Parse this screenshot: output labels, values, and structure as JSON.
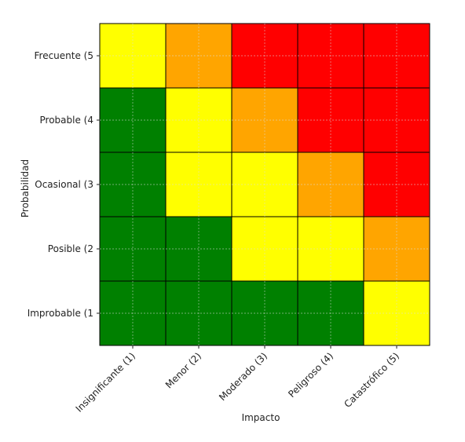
{
  "chart_data": {
    "type": "heatmap",
    "title": "",
    "xlabel": "Impacto",
    "ylabel": "Probabilidad",
    "x_categories": [
      "Insignificante (1)",
      "Menor (2)",
      "Moderado (3)",
      "Peligroso (4)",
      "Catastrófico (5)"
    ],
    "y_categories": [
      "Improbable (1",
      "Posible (2",
      "Ocasional (3",
      "Probable (4",
      "Frecuente (5"
    ],
    "risk_levels": [
      "bajo",
      "medio",
      "alto",
      "muy_alto"
    ],
    "colors": {
      "bajo": "#008000",
      "medio": "#ffff00",
      "alto": "#ffa500",
      "muy_alto": "#ff0000",
      "cell_border": "#000000",
      "grid": "#dddddd"
    },
    "grid": true,
    "matrix_top_to_bottom": [
      [
        "medio",
        "alto",
        "muy_alto",
        "muy_alto",
        "muy_alto"
      ],
      [
        "bajo",
        "medio",
        "alto",
        "muy_alto",
        "muy_alto"
      ],
      [
        "bajo",
        "medio",
        "medio",
        "alto",
        "muy_alto"
      ],
      [
        "bajo",
        "bajo",
        "medio",
        "medio",
        "alto"
      ],
      [
        "bajo",
        "bajo",
        "bajo",
        "bajo",
        "medio"
      ]
    ]
  }
}
